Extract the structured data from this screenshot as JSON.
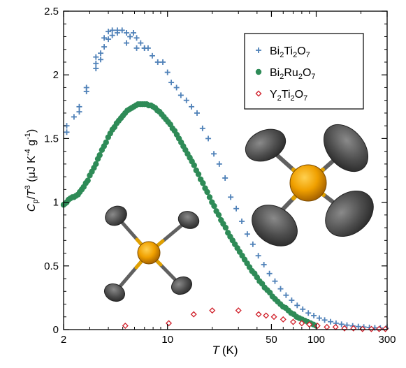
{
  "chart_data": {
    "type": "scatter",
    "x_scale": "log",
    "xlim": [
      2,
      300
    ],
    "ylim": [
      0,
      2.5
    ],
    "xlabel_italic": "T",
    "xlabel_unit": "(K)",
    "x_ticks": [
      2,
      10,
      50,
      100,
      300
    ],
    "y_ticks": [
      0,
      0.5,
      1,
      1.5,
      2,
      2.5
    ],
    "x_tick_labels": [
      "2",
      "10",
      "50",
      "100",
      "300"
    ],
    "y_tick_labels": [
      "0",
      "0.5",
      "1",
      "1.5",
      "2",
      "2.5"
    ],
    "ylabel": {
      "c": "C",
      "c_sub": "p",
      "slash": "/",
      "t": "T",
      "t_sup": "3",
      "unit_open": " (μJ K",
      "unit_sup1": "-4",
      "unit_mid": " g",
      "unit_sup2": "-1",
      "unit_close": ")"
    },
    "legend_position": "top-right",
    "series": [
      {
        "name_parts": [
          "Bi",
          "2",
          "Ti",
          "2",
          "O",
          "7"
        ],
        "marker": "plus",
        "color": "#4f81b8",
        "x": [
          2.1,
          2.1,
          2.35,
          2.55,
          2.55,
          2.85,
          2.85,
          3.3,
          3.3,
          3.3,
          3.55,
          3.55,
          3.75,
          3.75,
          4.0,
          4.0,
          4.25,
          4.25,
          4.6,
          4.6,
          4.95,
          5.3,
          5.3,
          5.6,
          5.9,
          6.2,
          6.2,
          6.6,
          7.0,
          7.0,
          7.4,
          7.9,
          8.6,
          9.3,
          10.0,
          10.6,
          11.5,
          12.3,
          13.4,
          14.5,
          15.8,
          17.2,
          18.8,
          20.5,
          22.3,
          24.4,
          26.6,
          29.0,
          31.6,
          34.4,
          37.5,
          40.8,
          44.5,
          48.5,
          52.8,
          57.6,
          62.7,
          68.4,
          74.5,
          81.2,
          88.5,
          96.4,
          105,
          114,
          125,
          136,
          148,
          161,
          176,
          192,
          209,
          228,
          248,
          270,
          295
        ],
        "y": [
          1.55,
          1.6,
          1.67,
          1.75,
          1.71,
          1.9,
          1.87,
          2.05,
          2.09,
          2.14,
          2.12,
          2.17,
          2.22,
          2.29,
          2.28,
          2.34,
          2.31,
          2.35,
          2.33,
          2.35,
          2.35,
          2.25,
          2.33,
          2.3,
          2.33,
          2.21,
          2.29,
          2.25,
          2.21,
          2.21,
          2.21,
          2.15,
          2.1,
          2.1,
          2.02,
          1.94,
          1.9,
          1.84,
          1.8,
          1.75,
          1.7,
          1.58,
          1.5,
          1.38,
          1.3,
          1.19,
          1.04,
          0.95,
          0.85,
          0.75,
          0.67,
          0.58,
          0.51,
          0.44,
          0.38,
          0.32,
          0.27,
          0.23,
          0.19,
          0.16,
          0.13,
          0.11,
          0.09,
          0.075,
          0.062,
          0.05,
          0.042,
          0.035,
          0.029,
          0.024,
          0.02,
          0.017,
          0.014,
          0.012,
          0.01
        ]
      },
      {
        "name_parts": [
          "Bi",
          "2",
          "Ru",
          "2",
          "O",
          "7"
        ],
        "marker": "circle",
        "color": "#2e8b57",
        "x": [
          2.0,
          2.05,
          2.1,
          2.16,
          2.22,
          2.29,
          2.35,
          2.42,
          2.5,
          2.57,
          2.65,
          2.73,
          2.82,
          2.91,
          3.0,
          3.1,
          3.2,
          3.3,
          3.4,
          3.5,
          3.62,
          3.74,
          3.86,
          3.99,
          4.12,
          4.26,
          4.4,
          4.55,
          4.7,
          4.86,
          5.02,
          5.19,
          5.37,
          5.55,
          5.74,
          5.93,
          6.13,
          6.34,
          6.55,
          6.77,
          7.0,
          7.24,
          7.48,
          7.74,
          8.0,
          8.27,
          8.55,
          8.84,
          9.14,
          9.45,
          9.77,
          10.1,
          10.45,
          10.8,
          11.17,
          11.55,
          11.94,
          12.35,
          12.77,
          13.2,
          13.65,
          14.12,
          14.6,
          15.1,
          15.6,
          16.15,
          16.7,
          17.3,
          17.9,
          18.5,
          19.2,
          19.9,
          20.6,
          21.3,
          22.1,
          22.9,
          23.7,
          24.6,
          25.5,
          26.4,
          27.4,
          28.4,
          29.5,
          30.6,
          31.8,
          33.0,
          34.3,
          35.6,
          37.0,
          38.5,
          40.0,
          41.6,
          43.3,
          45.0,
          46.9,
          48.8,
          50.8,
          52.9,
          55.1,
          57.4,
          59.8,
          62.3,
          65.0,
          67.8,
          70.7,
          73.8,
          77.0,
          80.4,
          84.0,
          87.7,
          91.6,
          95.7,
          100
        ],
        "y": [
          0.98,
          0.99,
          1.0,
          1.02,
          1.03,
          1.04,
          1.04,
          1.05,
          1.06,
          1.08,
          1.1,
          1.12,
          1.15,
          1.17,
          1.21,
          1.24,
          1.27,
          1.3,
          1.34,
          1.37,
          1.41,
          1.44,
          1.47,
          1.51,
          1.54,
          1.57,
          1.59,
          1.62,
          1.64,
          1.66,
          1.68,
          1.7,
          1.72,
          1.73,
          1.74,
          1.75,
          1.76,
          1.77,
          1.77,
          1.77,
          1.77,
          1.77,
          1.76,
          1.76,
          1.75,
          1.74,
          1.72,
          1.71,
          1.69,
          1.67,
          1.65,
          1.63,
          1.61,
          1.58,
          1.56,
          1.53,
          1.5,
          1.47,
          1.44,
          1.41,
          1.38,
          1.35,
          1.32,
          1.29,
          1.25,
          1.22,
          1.18,
          1.15,
          1.11,
          1.08,
          1.04,
          1.0,
          0.97,
          0.93,
          0.9,
          0.86,
          0.83,
          0.8,
          0.76,
          0.73,
          0.7,
          0.67,
          0.64,
          0.61,
          0.58,
          0.55,
          0.52,
          0.49,
          0.46,
          0.44,
          0.41,
          0.38,
          0.36,
          0.33,
          0.31,
          0.29,
          0.26,
          0.24,
          0.22,
          0.2,
          0.18,
          0.17,
          0.15,
          0.13,
          0.12,
          0.1,
          0.09,
          0.08,
          0.07,
          0.06,
          0.05,
          0.04,
          0.03
        ]
      },
      {
        "name_parts": [
          "Y",
          "2",
          "Ti",
          "2",
          "O",
          "7"
        ],
        "marker": "diamond",
        "color": "#d0202a",
        "x": [
          5.2,
          10.2,
          15,
          20,
          30,
          41,
          46,
          52,
          60,
          70,
          80,
          90,
          102,
          118,
          135,
          155,
          178,
          205,
          235,
          265,
          292
        ],
        "y": [
          0.03,
          0.05,
          0.12,
          0.15,
          0.15,
          0.12,
          0.11,
          0.1,
          0.08,
          0.06,
          0.05,
          0.04,
          0.03,
          0.02,
          0.02,
          0.01,
          0.01,
          0.005,
          0.005,
          0.005,
          0.005
        ]
      }
    ],
    "insets": [
      {
        "name": "left-tetrahedral-structure",
        "color_center": "#f0a000",
        "color_ellipsoid": "#555555"
      },
      {
        "name": "right-tetrahedral-structure",
        "color_center": "#f0a000",
        "color_ellipsoid": "#555555"
      }
    ]
  }
}
